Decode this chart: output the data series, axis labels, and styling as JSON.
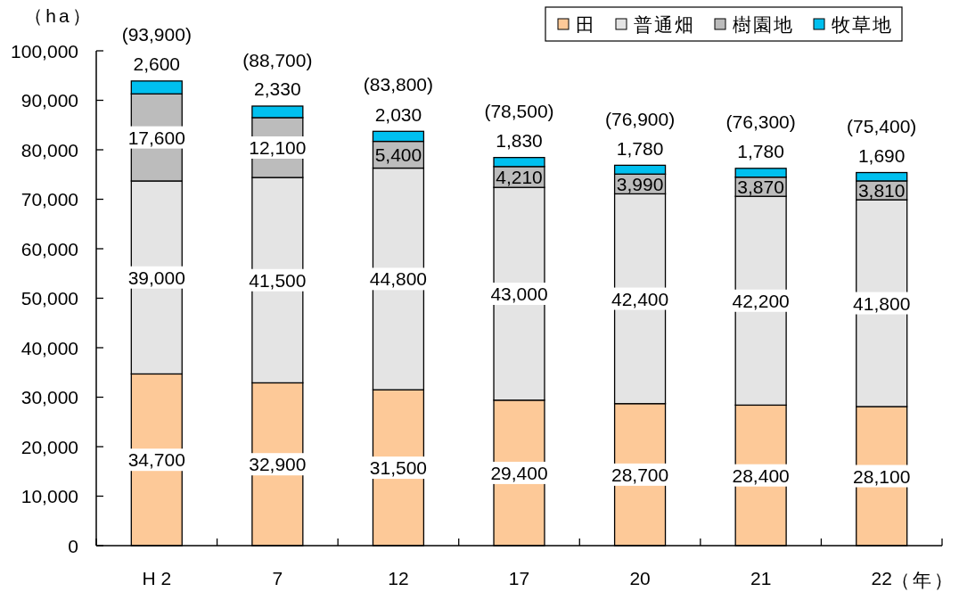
{
  "chart_data": {
    "type": "bar",
    "stacked": true,
    "categories": [
      "H 2",
      "7",
      "12",
      "17",
      "20",
      "21",
      "22"
    ],
    "series": [
      {
        "name": "田",
        "color": "#fdc998",
        "values": [
          34700,
          32900,
          31500,
          29400,
          28700,
          28400,
          28100
        ],
        "value_labels": [
          "34,700",
          "32,900",
          "31,500",
          "29,400",
          "28,700",
          "28,400",
          "28,100"
        ]
      },
      {
        "name": "普通畑",
        "color": "#e4e4e4",
        "values": [
          39000,
          41500,
          44800,
          43000,
          42400,
          42200,
          41800
        ],
        "value_labels": [
          "39,000",
          "41,500",
          "44,800",
          "43,000",
          "42,400",
          "42,200",
          "41,800"
        ]
      },
      {
        "name": "樹園地",
        "color": "#bcbcbc",
        "values": [
          17600,
          12100,
          5400,
          4210,
          3990,
          3870,
          3810
        ],
        "value_labels": [
          "17,600",
          "12,100",
          "5,400",
          "4,210",
          "3,990",
          "3,870",
          "3,810"
        ]
      },
      {
        "name": "牧草地",
        "color": "#00c0ef",
        "values": [
          2600,
          2330,
          2030,
          1830,
          1780,
          1780,
          1690
        ],
        "value_labels": [
          "2,600",
          "2,330",
          "2,030",
          "1,830",
          "1,780",
          "1,780",
          "1,690"
        ]
      }
    ],
    "annotations": [
      {
        "text": "(93,900)",
        "x": "H 2",
        "y": 93900
      },
      {
        "text": "(88,700)",
        "x": "7",
        "y": 88700
      },
      {
        "text": "(83,800)",
        "x": "12",
        "y": 83800
      },
      {
        "text": "(78,500)",
        "x": "17",
        "y": 78500
      },
      {
        "text": "(76,900)",
        "x": "20",
        "y": 76900
      },
      {
        "text": "(76,300)",
        "x": "21",
        "y": 76300
      },
      {
        "text": "(75,400)",
        "x": "22",
        "y": 75400
      }
    ],
    "ylabel": "（ha）",
    "xlabel": "（年）",
    "ylim": [
      0,
      100000
    ],
    "yticks": [
      0,
      {
        "value": 10000,
        "label": "10,000"
      },
      {
        "value": 20000,
        "label": "20,000"
      },
      {
        "value": 30000,
        "label": "30,000"
      },
      {
        "value": 40000,
        "label": "40,000"
      },
      {
        "value": 50000,
        "label": "50,000"
      },
      {
        "value": 60000,
        "label": "60,000"
      },
      {
        "value": 70000,
        "label": "70,000"
      },
      {
        "value": 80000,
        "label": "80,000"
      },
      {
        "value": 90000,
        "label": "90,000"
      },
      {
        "value": 100000,
        "label": "100,000"
      }
    ],
    "legend": "top right"
  }
}
